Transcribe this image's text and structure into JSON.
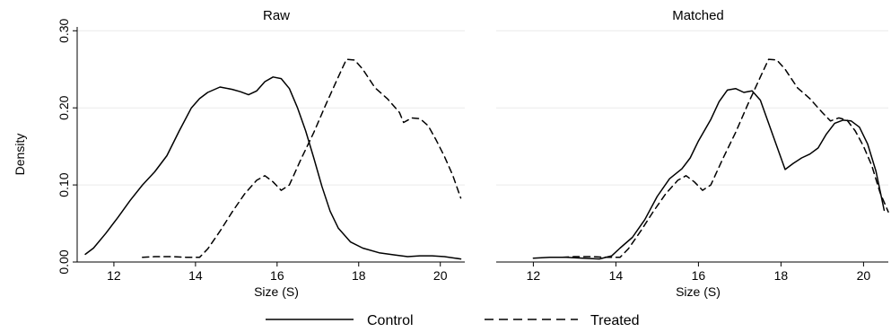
{
  "chart_data": {
    "type": "line",
    "ylabel": "Density",
    "y_ticks": [
      "0.00",
      "0.10",
      "0.20",
      "0.30"
    ],
    "y_tick_values": [
      0,
      0.1,
      0.2,
      0.3
    ],
    "ylim": [
      0,
      0.305
    ],
    "grid": true,
    "legend": {
      "position": "bottom",
      "items": [
        {
          "label": "Control",
          "style": "solid"
        },
        {
          "label": "Treated",
          "style": "dashed"
        }
      ]
    },
    "colors": {
      "line": "#000000",
      "grid": "#eaeaea",
      "axis": "#000000"
    },
    "panels": [
      {
        "title": "Raw",
        "xlabel": "Size (S)",
        "x_ticks": [
          "12",
          "14",
          "16",
          "18",
          "20"
        ],
        "x_tick_values": [
          12,
          14,
          16,
          18,
          20
        ],
        "xlim": [
          11.1,
          20.6
        ],
        "series": [
          {
            "name": "Control",
            "style": "solid",
            "points": [
              [
                11.3,
                0.01
              ],
              [
                11.5,
                0.018
              ],
              [
                11.8,
                0.037
              ],
              [
                12.1,
                0.058
              ],
              [
                12.4,
                0.08
              ],
              [
                12.7,
                0.1
              ],
              [
                13.0,
                0.117
              ],
              [
                13.3,
                0.138
              ],
              [
                13.6,
                0.17
              ],
              [
                13.9,
                0.2
              ],
              [
                14.1,
                0.212
              ],
              [
                14.3,
                0.22
              ],
              [
                14.6,
                0.227
              ],
              [
                14.9,
                0.224
              ],
              [
                15.1,
                0.221
              ],
              [
                15.3,
                0.217
              ],
              [
                15.5,
                0.222
              ],
              [
                15.7,
                0.234
              ],
              [
                15.9,
                0.24
              ],
              [
                16.1,
                0.238
              ],
              [
                16.3,
                0.225
              ],
              [
                16.5,
                0.2
              ],
              [
                16.7,
                0.17
              ],
              [
                16.9,
                0.135
              ],
              [
                17.1,
                0.098
              ],
              [
                17.3,
                0.066
              ],
              [
                17.5,
                0.044
              ],
              [
                17.8,
                0.026
              ],
              [
                18.1,
                0.018
              ],
              [
                18.5,
                0.012
              ],
              [
                18.9,
                0.009
              ],
              [
                19.2,
                0.007
              ],
              [
                19.5,
                0.008
              ],
              [
                19.8,
                0.008
              ],
              [
                20.1,
                0.007
              ],
              [
                20.5,
                0.004
              ]
            ]
          },
          {
            "name": "Treated",
            "style": "dashed",
            "points": [
              [
                12.7,
                0.006
              ],
              [
                13.0,
                0.007
              ],
              [
                13.4,
                0.007
              ],
              [
                13.8,
                0.006
              ],
              [
                14.1,
                0.006
              ],
              [
                14.3,
                0.017
              ],
              [
                14.6,
                0.04
              ],
              [
                14.9,
                0.065
              ],
              [
                15.2,
                0.088
              ],
              [
                15.5,
                0.106
              ],
              [
                15.7,
                0.112
              ],
              [
                15.9,
                0.104
              ],
              [
                16.1,
                0.093
              ],
              [
                16.3,
                0.1
              ],
              [
                16.6,
                0.135
              ],
              [
                16.9,
                0.168
              ],
              [
                17.2,
                0.205
              ],
              [
                17.5,
                0.24
              ],
              [
                17.7,
                0.263
              ],
              [
                17.9,
                0.262
              ],
              [
                18.1,
                0.25
              ],
              [
                18.4,
                0.226
              ],
              [
                18.7,
                0.212
              ],
              [
                19.0,
                0.194
              ],
              [
                19.1,
                0.181
              ],
              [
                19.3,
                0.187
              ],
              [
                19.5,
                0.186
              ],
              [
                19.7,
                0.177
              ],
              [
                19.9,
                0.158
              ],
              [
                20.1,
                0.137
              ],
              [
                20.3,
                0.113
              ],
              [
                20.5,
                0.083
              ]
            ]
          }
        ]
      },
      {
        "title": "Matched",
        "xlabel": "Size (S)",
        "x_ticks": [
          "12",
          "14",
          "16",
          "18",
          "20"
        ],
        "x_tick_values": [
          12,
          14,
          16,
          18,
          20
        ],
        "xlim": [
          11.1,
          20.6
        ],
        "series": [
          {
            "name": "Control",
            "style": "solid",
            "points": [
              [
                12.0,
                0.005
              ],
              [
                12.4,
                0.006
              ],
              [
                12.8,
                0.006
              ],
              [
                13.2,
                0.005
              ],
              [
                13.6,
                0.004
              ],
              [
                13.9,
                0.008
              ],
              [
                14.1,
                0.018
              ],
              [
                14.4,
                0.032
              ],
              [
                14.7,
                0.055
              ],
              [
                15.0,
                0.085
              ],
              [
                15.3,
                0.108
              ],
              [
                15.6,
                0.121
              ],
              [
                15.8,
                0.135
              ],
              [
                16.0,
                0.157
              ],
              [
                16.3,
                0.185
              ],
              [
                16.5,
                0.208
              ],
              [
                16.7,
                0.223
              ],
              [
                16.9,
                0.225
              ],
              [
                17.1,
                0.22
              ],
              [
                17.3,
                0.222
              ],
              [
                17.5,
                0.21
              ],
              [
                17.7,
                0.18
              ],
              [
                17.9,
                0.15
              ],
              [
                18.1,
                0.12
              ],
              [
                18.3,
                0.128
              ],
              [
                18.5,
                0.135
              ],
              [
                18.7,
                0.14
              ],
              [
                18.9,
                0.148
              ],
              [
                19.1,
                0.166
              ],
              [
                19.3,
                0.18
              ],
              [
                19.5,
                0.184
              ],
              [
                19.7,
                0.183
              ],
              [
                19.9,
                0.175
              ],
              [
                20.1,
                0.153
              ],
              [
                20.3,
                0.118
              ],
              [
                20.5,
                0.067
              ]
            ]
          },
          {
            "name": "Treated",
            "style": "dashed",
            "points": [
              [
                12.7,
                0.006
              ],
              [
                13.0,
                0.007
              ],
              [
                13.4,
                0.007
              ],
              [
                13.8,
                0.006
              ],
              [
                14.1,
                0.006
              ],
              [
                14.3,
                0.017
              ],
              [
                14.6,
                0.04
              ],
              [
                14.9,
                0.065
              ],
              [
                15.2,
                0.088
              ],
              [
                15.5,
                0.106
              ],
              [
                15.7,
                0.112
              ],
              [
                15.9,
                0.104
              ],
              [
                16.1,
                0.093
              ],
              [
                16.3,
                0.1
              ],
              [
                16.6,
                0.135
              ],
              [
                16.9,
                0.168
              ],
              [
                17.2,
                0.205
              ],
              [
                17.5,
                0.24
              ],
              [
                17.7,
                0.263
              ],
              [
                17.9,
                0.262
              ],
              [
                18.1,
                0.25
              ],
              [
                18.4,
                0.226
              ],
              [
                18.7,
                0.212
              ],
              [
                19.0,
                0.194
              ],
              [
                19.2,
                0.183
              ],
              [
                19.4,
                0.187
              ],
              [
                19.6,
                0.184
              ],
              [
                19.8,
                0.17
              ],
              [
                20.0,
                0.15
              ],
              [
                20.2,
                0.125
              ],
              [
                20.4,
                0.09
              ],
              [
                20.6,
                0.065
              ]
            ]
          }
        ]
      }
    ]
  }
}
